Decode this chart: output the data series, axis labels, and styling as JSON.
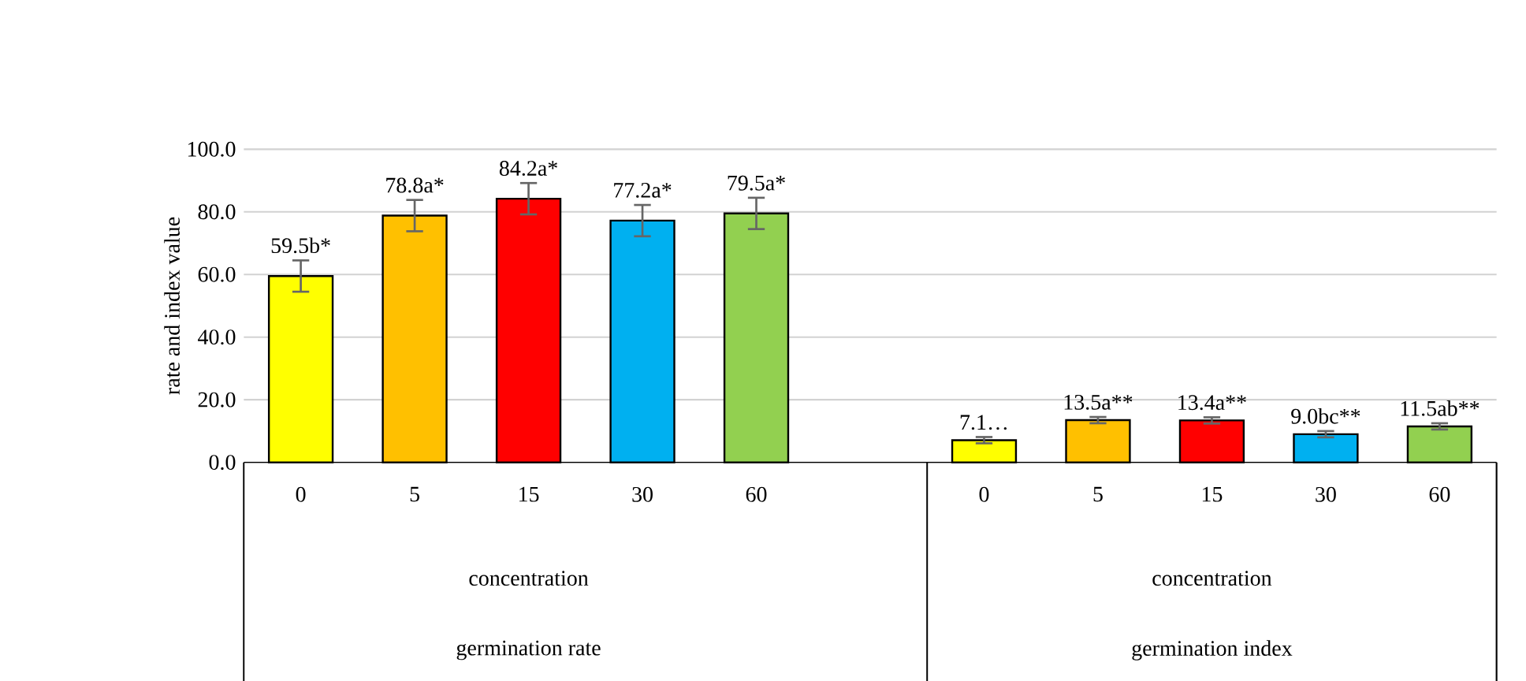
{
  "chart_data": {
    "type": "bar",
    "ylabel": "rate and index value",
    "categories": [
      "0",
      "5",
      "15",
      "30",
      "60",
      null,
      "0",
      "5",
      "15",
      "30",
      "60"
    ],
    "values": [
      59.5,
      78.8,
      84.2,
      77.2,
      79.5,
      null,
      7.1,
      13.5,
      13.4,
      9.0,
      11.5
    ],
    "errors": [
      5.0,
      5.0,
      5.0,
      5.0,
      5.0,
      null,
      1.0,
      1.0,
      1.0,
      1.0,
      1.0
    ],
    "value_labels": [
      "59.5b*",
      "78.8a*",
      "84.2a*",
      "77.2a*",
      "79.5a*",
      null,
      "7.1…",
      "13.5a**",
      "13.4a**",
      "9.0bc**",
      "11.5ab**"
    ],
    "colors": [
      "#ffff00",
      "#ffc000",
      "#ff0000",
      "#00b0f0",
      "#92d050",
      null,
      "#ffff00",
      "#ffc000",
      "#ff0000",
      "#00b0f0",
      "#92d050"
    ],
    "ylim": [
      0,
      100
    ],
    "yticks": [
      {
        "value": 0,
        "label": "0.0"
      },
      {
        "value": 20,
        "label": "20.0"
      },
      {
        "value": 40,
        "label": "40.0"
      },
      {
        "value": 60,
        "label": "60.0"
      },
      {
        "value": 80,
        "label": "80.0"
      },
      {
        "value": 100,
        "label": "100.0"
      }
    ],
    "grid": "y",
    "annotations": [
      "concentration",
      "germination rate",
      "concentration",
      "germination index"
    ]
  }
}
